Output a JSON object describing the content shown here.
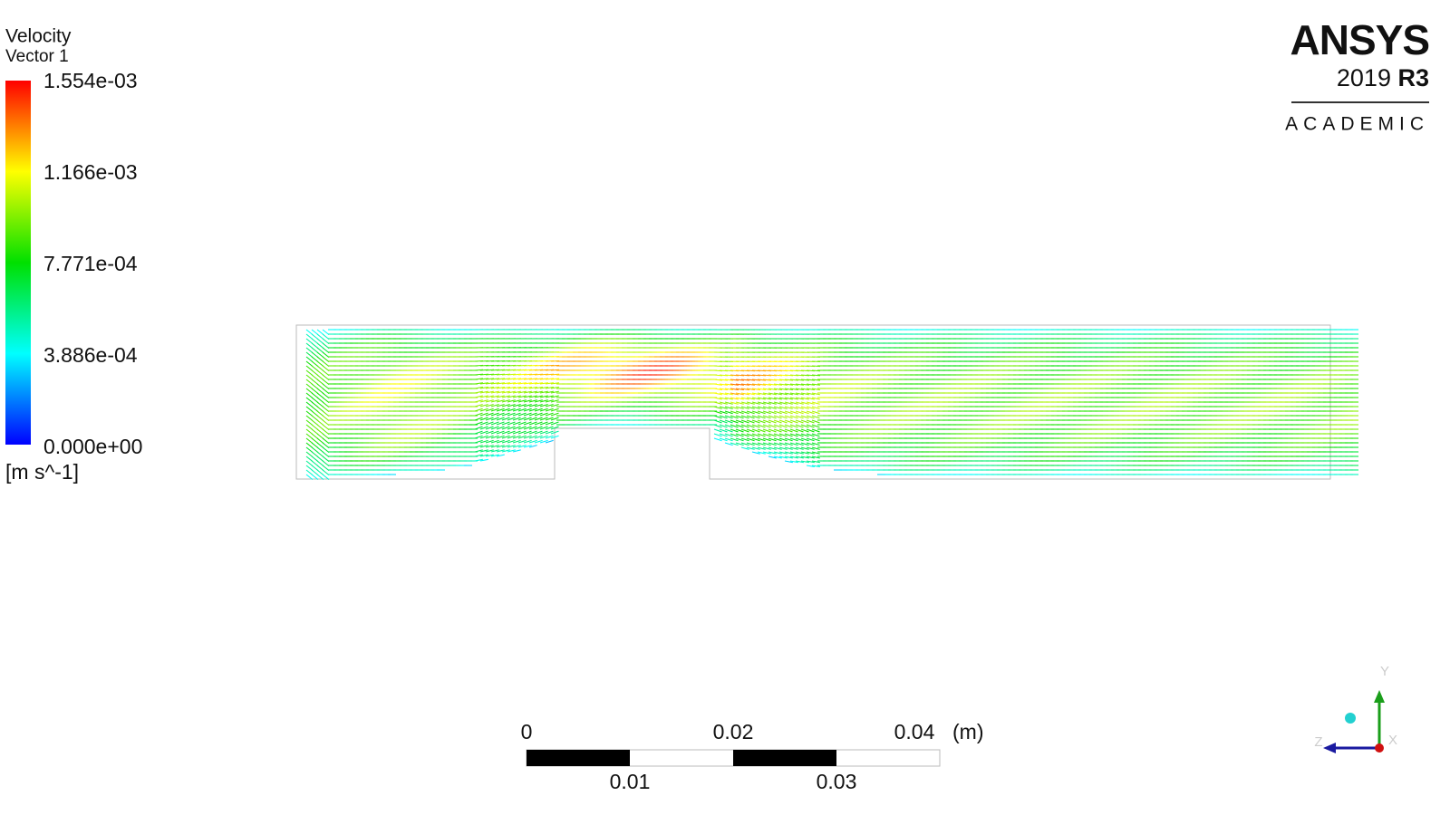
{
  "legend": {
    "title": "Velocity",
    "subtitle": "Vector 1",
    "labels": [
      "1.554e-03",
      "1.166e-03",
      "7.771e-04",
      "3.886e-04",
      "0.000e+00"
    ],
    "unit": "[m s^-1]"
  },
  "logo": {
    "brand": "ANSYS",
    "version": "2019",
    "release": "R3",
    "edition": "ACADEMIC"
  },
  "scale_bar": {
    "top_labels": [
      "0",
      "0.02",
      "0.04"
    ],
    "unit": "(m)",
    "bottom_labels": [
      "0.01",
      "0.03"
    ]
  },
  "axes": {
    "y": "Y",
    "z": "Z",
    "x": "X"
  }
}
